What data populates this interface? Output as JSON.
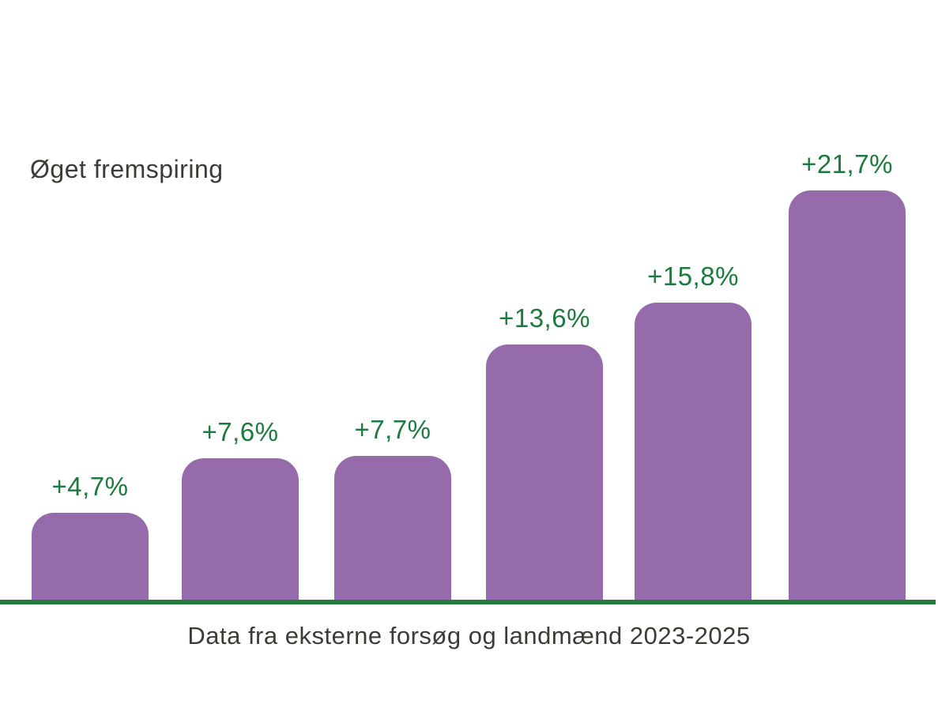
{
  "chart_data": {
    "type": "bar",
    "title": "Øget fremspiring",
    "caption": "Data fra eksterne forsøg og landmænd 2023-2025",
    "xlabel": "",
    "ylabel": "",
    "grid": false,
    "legend": false,
    "axis_line": "green horizontal baseline at bottom, no tick labels",
    "bars": [
      {
        "value": 4.7,
        "label": "+4,7%"
      },
      {
        "value": 7.6,
        "label": "+7,6%"
      },
      {
        "value": 7.7,
        "label": "+7,7%"
      },
      {
        "value": 13.6,
        "label": "+13,6%"
      },
      {
        "value": 15.8,
        "label": "+15,8%"
      },
      {
        "value": 21.7,
        "label": "+21,7%"
      }
    ],
    "value_unit": "%",
    "ylim": [
      0,
      23
    ]
  },
  "colors": {
    "background": "#ffffff",
    "bar_fill": "#956bac",
    "value_label": "#1b7a3d",
    "baseline": "#257b3e",
    "text": "#3b3c35"
  }
}
